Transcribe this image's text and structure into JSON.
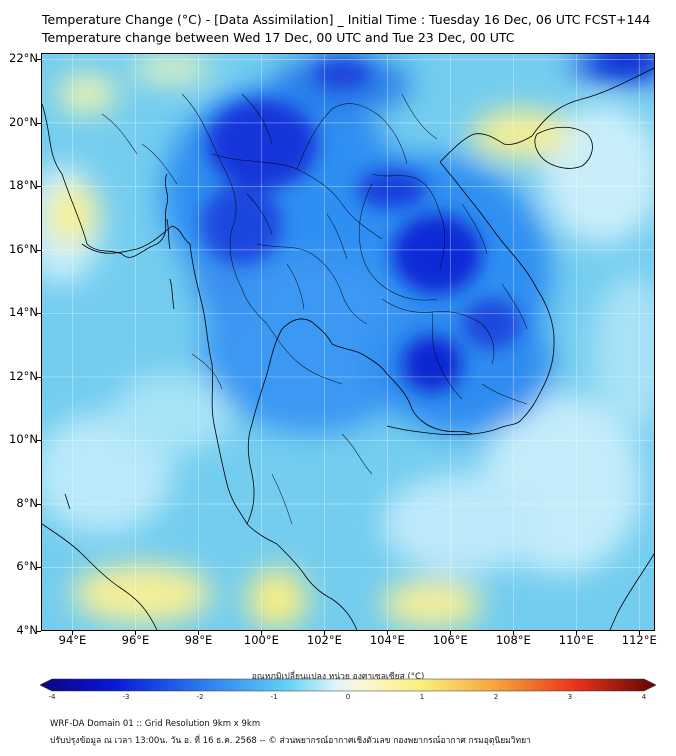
{
  "header": {
    "title_line1": "Temperature Change (°C) - [Data Assimilation] _ Initial Time : Tuesday 16 Dec, 06 UTC FCST+144",
    "title_line2": "Temperature change between Wed 17 Dec, 00 UTC and Tue 23 Dec, 00 UTC"
  },
  "map": {
    "lat_labels": [
      "22°N",
      "20°N",
      "18°N",
      "16°N",
      "14°N",
      "12°N",
      "10°N",
      "8°N",
      "6°N",
      "4°N"
    ],
    "lat_values": [
      22,
      20,
      18,
      16,
      14,
      12,
      10,
      8,
      6,
      4
    ],
    "lon_labels": [
      "94°E",
      "96°E",
      "98°E",
      "100°E",
      "102°E",
      "104°E",
      "106°E",
      "108°E",
      "110°E",
      "112°E"
    ],
    "lon_values": [
      94,
      96,
      98,
      100,
      102,
      104,
      106,
      108,
      110,
      112
    ],
    "extent": {
      "lon_min": 93,
      "lon_max": 112.5,
      "lat_min": 4,
      "lat_max": 22.2
    },
    "colors": {
      "deep_blue": "#0a1fd6",
      "mid_blue": "#1e7df0",
      "light_blue": "#68d2f4",
      "pale": "#c8eefa",
      "yellow": "#fbf08a"
    }
  },
  "colorbar": {
    "label": "อุณหภูมิเปลี่ยนแปลง หน่วย องศาเซลเซียส (°C)",
    "ticks": [
      "-4",
      "-3",
      "-2",
      "-1",
      "0",
      "1",
      "2",
      "3",
      "4"
    ],
    "min": -4,
    "max": 4
  },
  "footer": {
    "line1": "WRF-DA Domain 01 :: Grid Resolution 9km x 9km",
    "line2": "ปรับปรุงข้อมูล ณ เวลา 13:00น. วัน อ. ที่ 16 ธ.ค. 2568 -- © ส่วนพยากรณ์อากาศเชิงตัวเลข กองพยากรณ์อากาศ กรมอุตุนิยมวิทยา"
  }
}
